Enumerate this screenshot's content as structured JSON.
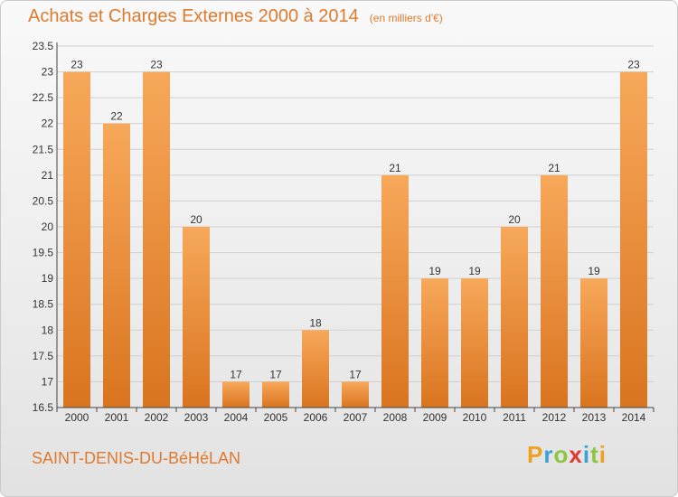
{
  "header": {
    "title": "Achats et Charges Externes 2000 à 2014",
    "subtitle": "(en milliers d'€)"
  },
  "footer": {
    "commune": "SAINT-DENIS-DU-BéHéLAN",
    "logo_letters": [
      "P",
      "r",
      "o",
      "x",
      "i",
      "t",
      "i"
    ],
    "logo_colors": [
      "#f0a020",
      "#3aa0d8",
      "#8cc63f",
      "#e23a2e",
      "#3aa0d8",
      "#8cc63f",
      "#f0a020"
    ]
  },
  "colors": {
    "bar_light": "#f7a85a",
    "bar_dark": "#d9741f",
    "axis": "#444444",
    "grid": "#cfcfcf",
    "accent": "#e07a2e"
  },
  "chart_data": {
    "type": "bar",
    "categories": [
      "2000",
      "2001",
      "2002",
      "2003",
      "2004",
      "2005",
      "2006",
      "2007",
      "2008",
      "2009",
      "2010",
      "2011",
      "2012",
      "2013",
      "2014"
    ],
    "values": [
      23,
      22,
      23,
      20,
      17,
      17,
      18,
      17,
      21,
      19,
      19,
      20,
      21,
      19,
      23
    ],
    "labels": [
      "23",
      "22",
      "23",
      "20",
      "17",
      "17",
      "18",
      "17",
      "21",
      "19",
      "19",
      "20",
      "21",
      "19",
      "23"
    ],
    "yticks": [
      16.5,
      17,
      17.5,
      18,
      18.5,
      19,
      19.5,
      20,
      20.5,
      21,
      21.5,
      22,
      22.5,
      23,
      23.5
    ],
    "ytick_labels": [
      "16.5",
      "17",
      "17.5",
      "18",
      "18.5",
      "19",
      "19.5",
      "20",
      "20.5",
      "21",
      "21.5",
      "22",
      "22.5",
      "23",
      "23.5"
    ],
    "ylim": [
      16.5,
      23.5
    ],
    "xlabel": "",
    "ylabel": "",
    "grid": true
  }
}
